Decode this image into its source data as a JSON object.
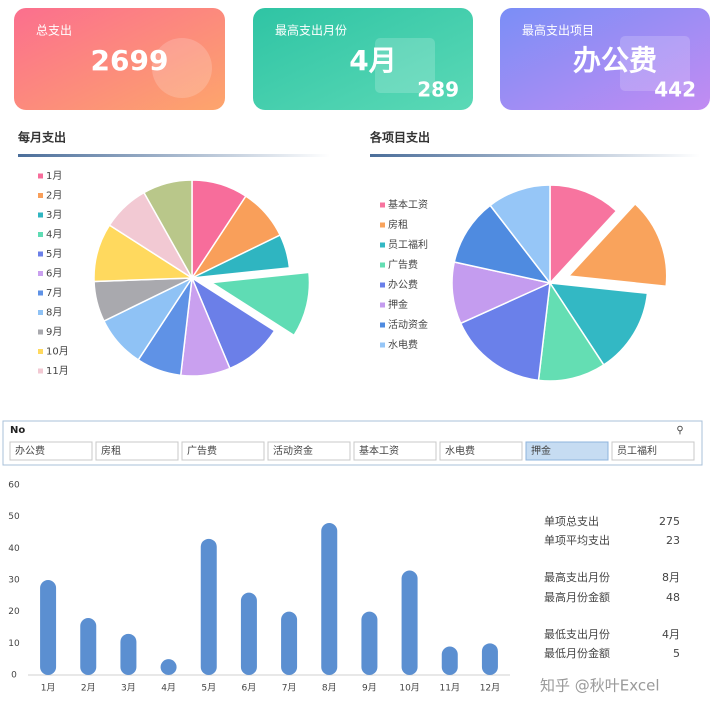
{
  "cards": [
    {
      "title": "总支出",
      "value": 2699
    },
    {
      "title": "最高支出月份",
      "value": "4月",
      "sub": 289
    },
    {
      "title": "最高支出项目",
      "value": "办公费",
      "sub": 442
    }
  ],
  "chart_data": [
    {
      "type": "pie",
      "title": "每月支出",
      "categories": [
        "1月",
        "2月",
        "3月",
        "4月",
        "5月",
        "6月",
        "7月",
        "8月",
        "9月",
        "10月",
        "11月",
        null
      ],
      "values": [
        250,
        230,
        150,
        289,
        260,
        220,
        200,
        230,
        180,
        260,
        210,
        220
      ],
      "colors": [
        "#f76d9b",
        "#f99f5a",
        "#2fb5c1",
        "#5fdcb4",
        "#6b7fe8",
        "#c9a0ef",
        "#5f92e6",
        "#8fc2f5",
        "#a9a9ae",
        "#ffd95e",
        "#f2c9d3",
        "#b9c78a"
      ],
      "explode": 3
    },
    {
      "type": "pie",
      "title": "各项目支出",
      "categories": [
        "基本工资",
        "房租",
        "员工福利",
        "广告费",
        "办公费",
        "押金",
        "活动资金",
        "水电费"
      ],
      "values": [
        320,
        400,
        380,
        300,
        442,
        275,
        300,
        282
      ],
      "colors": [
        "#f7749f",
        "#f9a35c",
        "#33b8c4",
        "#64deb3",
        "#6a80ea",
        "#c49cef",
        "#4f8be0",
        "#96c6f7"
      ],
      "explode": 1
    },
    {
      "type": "bar",
      "categories": [
        "1月",
        "2月",
        "3月",
        "4月",
        "5月",
        "6月",
        "7月",
        "8月",
        "9月",
        "10月",
        "11月",
        "12月"
      ],
      "values": [
        30,
        18,
        13,
        5,
        43,
        26,
        20,
        48,
        20,
        33,
        9,
        10
      ],
      "color": "#5b8fd1",
      "ylim": [
        0,
        60
      ],
      "yticks": [
        0,
        10,
        20,
        30,
        40,
        50,
        60
      ]
    }
  ],
  "slicer": {
    "title": "No",
    "items": [
      "办公费",
      "房租",
      "广告费",
      "活动资金",
      "基本工资",
      "水电费",
      "押金",
      "员工福利"
    ],
    "selected": 6
  },
  "stats": [
    {
      "label": "单项总支出",
      "value": 275
    },
    {
      "label": "单项平均支出",
      "value": 23
    },
    {
      "label": "最高支出月份",
      "value": "8月"
    },
    {
      "label": "最高月份金额",
      "value": 48
    },
    {
      "label": "最低支出月份",
      "value": "4月"
    },
    {
      "label": "最低月份金额",
      "value": 5
    }
  ],
  "watermark": "知乎 @秋叶Excel"
}
